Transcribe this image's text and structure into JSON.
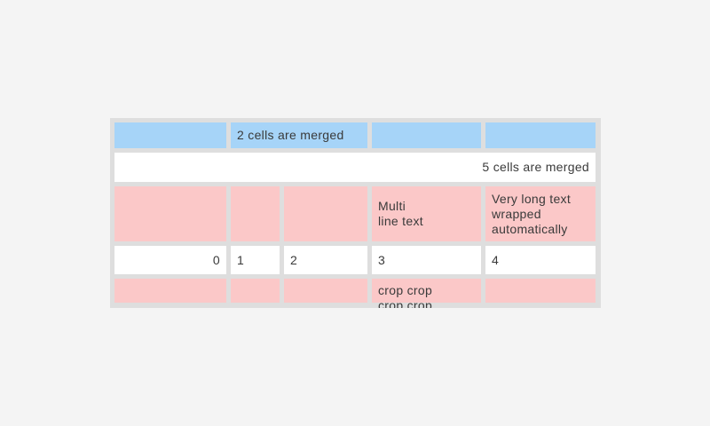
{
  "page": {
    "background_color": "#f4f4f4"
  },
  "table": {
    "container_color": "#dedede",
    "colors": {
      "blue_cell": "#a6d4f8",
      "pink_cell": "#fbc8c8",
      "white_cell": "#ffffff",
      "text": "#3a3a3a"
    },
    "rows": [
      {
        "name": "merged-2-row",
        "cells": [
          {
            "text": ""
          },
          {
            "text": "2 cells are merged"
          },
          {
            "text": ""
          },
          {
            "text": ""
          }
        ]
      },
      {
        "name": "merged-5-row",
        "cells": [
          {
            "text": "5 cells are merged"
          }
        ]
      },
      {
        "name": "multiline-row",
        "cells": [
          {
            "text": ""
          },
          {
            "text": ""
          },
          {
            "text": ""
          },
          {
            "text": "Multi\nline text"
          },
          {
            "text": "Very long text wrapped automatically"
          }
        ]
      },
      {
        "name": "numbers-row",
        "cells": [
          {
            "text": "0"
          },
          {
            "text": "1"
          },
          {
            "text": "2"
          },
          {
            "text": "3"
          },
          {
            "text": "4"
          }
        ]
      },
      {
        "name": "crop-row",
        "cells": [
          {
            "text": ""
          },
          {
            "text": ""
          },
          {
            "text": ""
          },
          {
            "text": "crop crop\ncrop crop"
          },
          {
            "text": ""
          }
        ]
      }
    ]
  }
}
